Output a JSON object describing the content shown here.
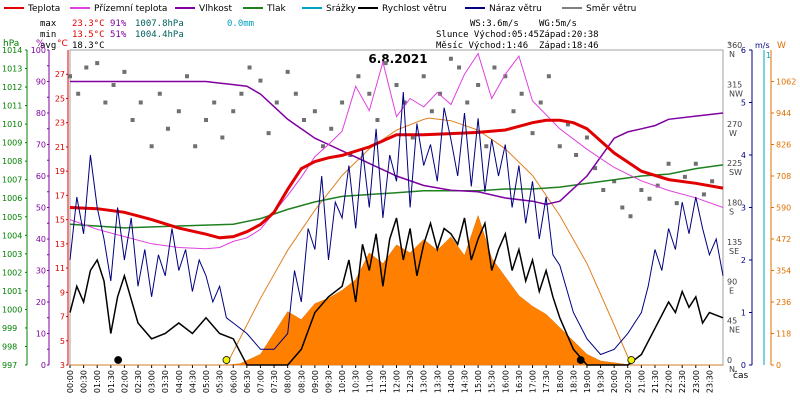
{
  "chart_data": {
    "type": "line",
    "title": "6.8.2021",
    "legend": [
      {
        "label": "Teplota",
        "color": "#e00000"
      },
      {
        "label": "Přízemní teplota",
        "color": "#e040e0"
      },
      {
        "label": "Vlhkost",
        "color": "#8000a0"
      },
      {
        "label": "Tlak",
        "color": "#208020"
      },
      {
        "label": "Srážky",
        "color": "#00a0c0"
      },
      {
        "label": "Rychlost větru",
        "color": "#000000"
      },
      {
        "label": "Náraz větru",
        "color": "#000080"
      },
      {
        "label": "Směr větru",
        "color": "#808080"
      }
    ],
    "stats": {
      "max": {
        "label": "max",
        "temp": "23.3°C",
        "hum": "91%",
        "press": "1007.8hPa",
        "rain": "0.0mm"
      },
      "min": {
        "label": "min",
        "temp": "13.5°C",
        "hum": "51%",
        "press": "1004.4hPa"
      },
      "avg": {
        "label": "avg",
        "temp": "18.3°C"
      }
    },
    "info": {
      "ws": "WS:3.6m/s",
      "wg": "WG:5m/s",
      "sun_rise": "Slunce Východ:05:45",
      "sun_set": "Západ:20:38",
      "moon_rise": "Měsíc Východ:1:46",
      "moon_set": "Západ:18:46"
    },
    "axes": {
      "hpa_title": "hPa",
      "pct_title": "%",
      "temp_title": "°C",
      "dir_title": "°",
      "ms_title": "m/s",
      "rain_title": "1",
      "solar_title": "W",
      "x_title": "čas",
      "hpa_ticks": [
        "997",
        "998",
        "999",
        "1000",
        "1001",
        "1002",
        "1003",
        "1004",
        "1005",
        "1006",
        "1007",
        "1008",
        "1009",
        "1010",
        "1011",
        "1012",
        "1013",
        "1014"
      ],
      "pct_ticks": [
        "0",
        "5",
        "10",
        "15",
        "20",
        "25",
        "30",
        "35",
        "40",
        "45",
        "50",
        "55",
        "60",
        "65",
        "70",
        "75",
        "80",
        "85",
        "90",
        "95",
        "100"
      ],
      "temp_ticks": [
        "3",
        "5",
        "7",
        "9",
        "11",
        "13",
        "15",
        "17",
        "19",
        "21",
        "23",
        "25",
        "27"
      ],
      "dir_ticks": [
        {
          "deg": "0",
          "lab": "N"
        },
        {
          "deg": "45",
          "lab": "NE"
        },
        {
          "deg": "90",
          "lab": "E"
        },
        {
          "deg": "135",
          "lab": "SE"
        },
        {
          "deg": "180",
          "lab": "S"
        },
        {
          "deg": "225",
          "lab": "SW"
        },
        {
          "deg": "270",
          "lab": "W"
        },
        {
          "deg": "315",
          "lab": "NW"
        },
        {
          "deg": "360",
          "lab": "N"
        }
      ],
      "ms_ticks": [
        "0",
        "1",
        "2",
        "3",
        "4",
        "5",
        "6"
      ],
      "solar_ticks": [
        "0",
        "118",
        "236",
        "354",
        "472",
        "590",
        "708",
        "826",
        "944",
        "1062"
      ],
      "x_ticks": [
        "00:00",
        "00:30",
        "01:00",
        "01:30",
        "02:00",
        "02:30",
        "03:00",
        "03:30",
        "04:00",
        "04:30",
        "05:00",
        "05:30",
        "06:00",
        "06:30",
        "07:00",
        "07:30",
        "08:00",
        "08:30",
        "09:00",
        "09:30",
        "10:00",
        "10:30",
        "11:00",
        "11:30",
        "12:00",
        "12:30",
        "13:00",
        "13:30",
        "14:00",
        "14:30",
        "15:00",
        "15:30",
        "16:00",
        "16:30",
        "17:00",
        "17:30",
        "18:00",
        "18:30",
        "19:00",
        "19:30",
        "20:00",
        "20:30",
        "21:00",
        "21:30",
        "22:00",
        "22:30",
        "23:00",
        "23:30"
      ],
      "temp_range": [
        3,
        29
      ],
      "dir_range": [
        0,
        360
      ],
      "wind_range": [
        0,
        6
      ],
      "solar_range": [
        0,
        1180
      ],
      "press_range": [
        997,
        1014
      ]
    },
    "series": {
      "temperature": {
        "x": [
          0,
          1,
          2,
          3,
          4,
          5,
          5.5,
          6,
          6.5,
          7,
          7.5,
          8,
          8.5,
          9,
          9.5,
          10,
          11,
          12,
          13,
          14,
          15,
          16,
          17,
          17.5,
          18,
          18.5,
          19,
          19.5,
          20,
          21,
          22,
          23,
          24
        ],
        "y": [
          16,
          15.9,
          15.6,
          15,
          14.3,
          13.8,
          13.5,
          13.6,
          14,
          14.6,
          15.6,
          17.5,
          19.2,
          19.8,
          20.1,
          20.3,
          21,
          22,
          22,
          22.1,
          22.2,
          22.4,
          23,
          23.2,
          23.2,
          23,
          22.5,
          21.5,
          20.5,
          19,
          18.3,
          18,
          17.6
        ]
      },
      "ground_temperature": {
        "x": [
          0,
          1,
          2,
          3,
          4,
          5,
          5.5,
          6,
          6.5,
          7,
          7.5,
          8,
          8.5,
          9,
          9.5,
          10,
          10.5,
          11,
          11.5,
          12,
          12.5,
          13,
          13.5,
          14,
          14.5,
          15,
          15.5,
          16,
          16.5,
          17,
          18,
          19,
          20,
          21,
          22,
          23,
          24
        ],
        "y": [
          15,
          14.2,
          13.6,
          13,
          12.7,
          12.6,
          12.7,
          13.2,
          13.5,
          14.2,
          15.6,
          17,
          18.5,
          20.2,
          21.2,
          22.3,
          26,
          24,
          28,
          23.5,
          25,
          24.3,
          25.5,
          24.5,
          27,
          28.7,
          25,
          27,
          28.5,
          24.8,
          22.5,
          20.8,
          19.3,
          18.2,
          17.4,
          16.8,
          16
        ]
      },
      "humidity": {
        "x": [
          0,
          1,
          2,
          3,
          4,
          5,
          5.5,
          6,
          6.5,
          7,
          7.5,
          8,
          8.5,
          9,
          9.5,
          10,
          10.5,
          11,
          12,
          13,
          14,
          15,
          16,
          17,
          17.5,
          18,
          18.5,
          19,
          19.5,
          20,
          20.5,
          21,
          21.5,
          22,
          23,
          24
        ],
        "y": [
          90,
          90,
          90,
          90,
          90,
          90,
          89.5,
          89,
          88.5,
          86,
          82,
          78,
          75,
          72,
          70,
          68,
          66,
          64,
          60,
          57,
          55.5,
          55,
          53,
          52,
          51,
          52,
          56,
          60,
          66,
          72,
          74,
          75,
          76,
          78,
          79,
          80
        ]
      },
      "pressure": {
        "x": [
          0,
          2,
          4,
          6,
          7,
          8,
          9,
          10,
          11,
          12,
          13,
          14,
          15,
          16,
          17,
          18,
          19,
          20,
          21,
          22,
          23,
          24
        ],
        "y": [
          1004.6,
          1004.4,
          1004.5,
          1004.6,
          1004.9,
          1005.4,
          1005.8,
          1006.1,
          1006.2,
          1006.3,
          1006.4,
          1006.4,
          1006.4,
          1006.5,
          1006.5,
          1006.6,
          1006.8,
          1007,
          1007.2,
          1007.3,
          1007.6,
          1007.8
        ]
      },
      "wind_speed": {
        "x": [
          0,
          0.25,
          0.5,
          0.75,
          1,
          1.25,
          1.5,
          1.75,
          2,
          2.5,
          3,
          3.5,
          4,
          4.5,
          5,
          5.5,
          6,
          6.5,
          7,
          7.5,
          8,
          8.5,
          9,
          9.5,
          10,
          10.25,
          10.5,
          10.75,
          11,
          11.25,
          11.5,
          11.75,
          12,
          12.25,
          12.5,
          12.75,
          13,
          13.25,
          13.5,
          13.75,
          14,
          14.25,
          14.5,
          14.75,
          15,
          15.25,
          15.5,
          15.75,
          16,
          16.25,
          16.5,
          16.75,
          17,
          17.25,
          17.5,
          17.75,
          18,
          18.5,
          19,
          19.5,
          20,
          20.5,
          21,
          21.5,
          22,
          22.25,
          22.5,
          22.75,
          23,
          23.25,
          23.5,
          24
        ],
        "y": [
          1,
          1.5,
          1.2,
          1.8,
          2,
          1.6,
          0.6,
          1.3,
          1.7,
          0.8,
          0.5,
          0.6,
          0.8,
          0.6,
          0.9,
          0.6,
          0.5,
          0,
          0,
          0,
          0,
          0.3,
          1,
          1.3,
          1.5,
          2,
          1.2,
          2.3,
          1.8,
          2.5,
          1.5,
          2.4,
          2.8,
          2,
          2.6,
          1.7,
          2.3,
          2.7,
          2.2,
          2.6,
          2.5,
          2.3,
          2.8,
          2,
          2.4,
          2.7,
          1.8,
          2.2,
          2.5,
          1.8,
          2.2,
          1.6,
          2,
          1.4,
          1.8,
          1.3,
          0.9,
          0.3,
          0,
          0,
          0,
          0,
          0.2,
          0.7,
          1.2,
          1,
          1.4,
          1.1,
          1.3,
          0.8,
          1,
          0.9
        ]
      },
      "wind_gust": {
        "x": [
          0,
          0.25,
          0.5,
          0.75,
          1,
          1.25,
          1.5,
          1.75,
          2,
          2.25,
          2.5,
          2.75,
          3,
          3.25,
          3.5,
          3.75,
          4,
          4.25,
          4.5,
          4.75,
          5,
          5.25,
          5.5,
          5.75,
          6,
          6.5,
          7,
          7.5,
          8,
          8.25,
          8.5,
          8.75,
          9,
          9.25,
          9.5,
          9.75,
          10,
          10.25,
          10.5,
          10.75,
          11,
          11.25,
          11.5,
          11.75,
          12,
          12.25,
          12.5,
          12.75,
          13,
          13.25,
          13.5,
          13.75,
          14,
          14.25,
          14.5,
          14.75,
          15,
          15.25,
          15.5,
          15.75,
          16,
          16.25,
          16.5,
          16.75,
          17,
          17.25,
          17.5,
          17.75,
          18,
          18.5,
          19,
          19.5,
          20,
          20.5,
          21,
          21.25,
          21.5,
          21.75,
          22,
          22.25,
          22.5,
          22.75,
          23,
          23.25,
          23.5,
          23.75,
          24
        ],
        "y": [
          2,
          3.2,
          2.5,
          4,
          3,
          2.4,
          1.6,
          3,
          2,
          2.8,
          1.5,
          2.2,
          1.3,
          2.1,
          1.7,
          2.6,
          1.8,
          2.2,
          1.4,
          2,
          1.7,
          1.2,
          1.5,
          0.9,
          0.8,
          0.6,
          0.3,
          0.3,
          0.6,
          1.8,
          1.2,
          2.6,
          2.2,
          3.6,
          2,
          3.1,
          2.8,
          3.8,
          2.6,
          4.1,
          3,
          4.5,
          2.8,
          4,
          3.5,
          5.2,
          3,
          4.6,
          3.8,
          4.2,
          3.5,
          4.9,
          4.3,
          3.6,
          4.8,
          3.4,
          4.7,
          3.3,
          4.3,
          3.6,
          4.2,
          3,
          3.8,
          2.7,
          3.5,
          2.4,
          3.2,
          2.1,
          1.9,
          1,
          0.5,
          0.2,
          0.3,
          0.6,
          1,
          1.5,
          2.2,
          1.8,
          2.6,
          2.2,
          3.1,
          2.5,
          3.2,
          2.6,
          2.1,
          2.4,
          1.7
        ]
      },
      "solar": {
        "x": [
          0,
          5.75,
          6.25,
          7,
          7.5,
          8,
          8.5,
          9,
          9.5,
          10,
          10.5,
          11,
          11.5,
          12,
          12.5,
          13,
          13.5,
          14,
          14.5,
          15,
          15.5,
          16,
          16.5,
          17,
          17.5,
          18,
          18.5,
          19,
          19.5,
          20.6,
          24
        ],
        "y": [
          0,
          0,
          5,
          40,
          120,
          200,
          170,
          230,
          250,
          280,
          320,
          420,
          380,
          450,
          420,
          470,
          430,
          480,
          410,
          560,
          400,
          330,
          260,
          220,
          190,
          140,
          90,
          40,
          15,
          0,
          0
        ]
      },
      "sun_elevation": {
        "x": [
          5.75,
          7,
          8,
          9,
          10,
          11,
          12,
          13,
          13.2,
          14,
          15,
          16,
          17,
          18,
          19,
          20,
          20.63
        ],
        "y": [
          0,
          250,
          430,
          580,
          710,
          810,
          880,
          920,
          925,
          915,
          880,
          810,
          710,
          560,
          380,
          150,
          0
        ]
      },
      "wind_direction": {
        "x": [
          0,
          0.3,
          0.6,
          1,
          1.3,
          1.6,
          2,
          2.3,
          2.6,
          3,
          3.3,
          3.6,
          4,
          4.3,
          4.6,
          5,
          5.3,
          5.6,
          6,
          6.3,
          6.6,
          7,
          7.3,
          7.6,
          8,
          8.3,
          8.6,
          9,
          9.3,
          9.6,
          10,
          10.3,
          10.6,
          11,
          11.3,
          11.6,
          12,
          12.3,
          12.6,
          13,
          13.3,
          13.6,
          14,
          14.3,
          14.6,
          15,
          15.3,
          15.6,
          16,
          16.3,
          16.6,
          17,
          17.3,
          17.6,
          18,
          18.3,
          18.6,
          19,
          19.3,
          19.6,
          20,
          20.3,
          20.6,
          21,
          21.3,
          21.6,
          22,
          22.3,
          22.6,
          23,
          23.3,
          23.6
        ],
        "y": [
          330,
          310,
          340,
          345,
          300,
          320,
          335,
          280,
          300,
          250,
          310,
          270,
          290,
          330,
          250,
          280,
          300,
          260,
          290,
          310,
          340,
          325,
          265,
          300,
          335,
          310,
          280,
          290,
          250,
          270,
          300,
          240,
          330,
          310,
          280,
          345,
          320,
          300,
          260,
          330,
          290,
          310,
          350,
          340,
          300,
          320,
          250,
          340,
          330,
          290,
          310,
          265,
          300,
          330,
          250,
          275,
          240,
          260,
          225,
          200,
          210,
          180,
          170,
          200,
          190,
          205,
          230,
          185,
          215,
          230,
          195,
          210
        ]
      }
    },
    "markers": [
      {
        "type": "moonrise",
        "x": 1.77,
        "color": "#000000"
      },
      {
        "type": "sunrise",
        "x": 5.75,
        "color": "#f0f000"
      },
      {
        "type": "moonset",
        "x": 18.77,
        "color": "#000000"
      },
      {
        "type": "sunset",
        "x": 20.63,
        "color": "#f0f000"
      }
    ]
  }
}
